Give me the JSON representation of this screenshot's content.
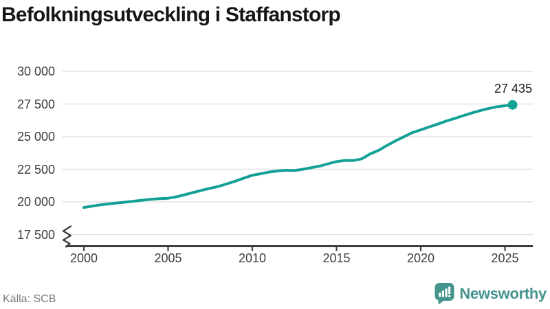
{
  "header": {
    "title": "Befolkningsutveckling i Staffanstorp"
  },
  "footer": {
    "source": "Källa: SCB",
    "brand": "Newsworthy"
  },
  "colors": {
    "line": "#14a195",
    "dot": "#14a195",
    "brand": "#45948d",
    "axis": "#3f3f3f",
    "grid": "#e4e4e4",
    "tick_text": "#3d3d3d"
  },
  "chart_data": {
    "type": "line",
    "title": "Befolkningsutveckling i Staffanstorp",
    "xlabel": "",
    "ylabel": "",
    "grid": true,
    "axis_break": true,
    "legend": "none",
    "xlim": [
      1998.5,
      2026.7
    ],
    "ylim": [
      17500,
      30000
    ],
    "yticks": {
      "values": [
        30000,
        27500,
        25000,
        22500,
        20000,
        17500
      ],
      "labels": [
        "30 000",
        "27 500",
        "25 000",
        "22 500",
        "20 000",
        "17 500"
      ]
    },
    "xticks": {
      "values": [
        2000,
        2005,
        2010,
        2015,
        2020,
        2025
      ],
      "labels": [
        "2000",
        "2005",
        "2010",
        "2015",
        "2020",
        "2025"
      ]
    },
    "end_label": "27 435",
    "end_value": 27435,
    "series": [
      {
        "name": "Befolkning",
        "points": [
          [
            2000,
            19575
          ],
          [
            2000.5,
            19680
          ],
          [
            2001,
            19780
          ],
          [
            2001.5,
            19850
          ],
          [
            2002,
            19920
          ],
          [
            2002.5,
            19990
          ],
          [
            2003,
            20060
          ],
          [
            2003.5,
            20130
          ],
          [
            2004,
            20200
          ],
          [
            2004.5,
            20250
          ],
          [
            2005,
            20280
          ],
          [
            2005.5,
            20390
          ],
          [
            2006,
            20550
          ],
          [
            2006.5,
            20720
          ],
          [
            2007,
            20890
          ],
          [
            2007.5,
            21040
          ],
          [
            2008,
            21190
          ],
          [
            2008.5,
            21390
          ],
          [
            2009,
            21590
          ],
          [
            2009.5,
            21820
          ],
          [
            2010,
            22040
          ],
          [
            2010.5,
            22160
          ],
          [
            2011,
            22290
          ],
          [
            2011.5,
            22370
          ],
          [
            2012,
            22420
          ],
          [
            2012.5,
            22400
          ],
          [
            2013,
            22500
          ],
          [
            2013.5,
            22620
          ],
          [
            2014,
            22740
          ],
          [
            2014.5,
            22920
          ],
          [
            2015,
            23090
          ],
          [
            2015.5,
            23180
          ],
          [
            2016,
            23170
          ],
          [
            2016.5,
            23300
          ],
          [
            2017,
            23680
          ],
          [
            2017.5,
            23950
          ],
          [
            2018,
            24330
          ],
          [
            2018.5,
            24680
          ],
          [
            2019,
            24990
          ],
          [
            2019.5,
            25310
          ],
          [
            2020,
            25520
          ],
          [
            2020.5,
            25740
          ],
          [
            2021,
            25960
          ],
          [
            2021.5,
            26190
          ],
          [
            2022,
            26390
          ],
          [
            2022.5,
            26600
          ],
          [
            2023,
            26800
          ],
          [
            2023.5,
            26990
          ],
          [
            2024,
            27150
          ],
          [
            2024.5,
            27290
          ],
          [
            2025.45,
            27435
          ]
        ]
      }
    ]
  }
}
